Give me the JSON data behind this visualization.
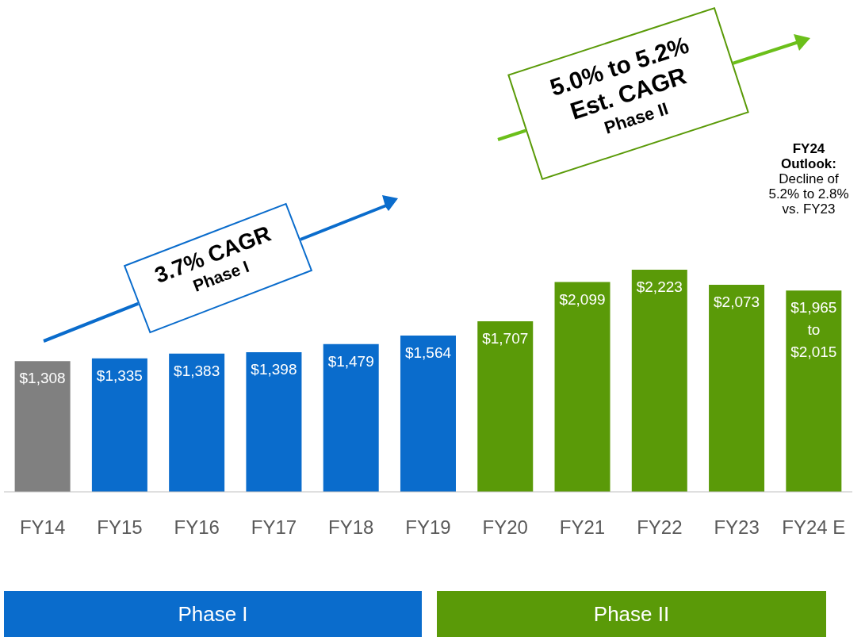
{
  "chart_data": {
    "type": "bar",
    "categories": [
      "FY14",
      "FY15",
      "FY16",
      "FY17",
      "FY18",
      "FY19",
      "FY20",
      "FY21",
      "FY22",
      "FY23",
      "FY24 E"
    ],
    "values": [
      1308,
      1335,
      1383,
      1398,
      1479,
      1564,
      1707,
      2099,
      2223,
      2073,
      2015
    ],
    "value_labels": [
      "$1,308",
      "$1,335",
      "$1,383",
      "$1,398",
      "$1,479",
      "$1,564",
      "$1,707",
      "$2,099",
      "$2,223",
      "$2,073",
      "$1,965\nto\n$2,015"
    ],
    "colors": [
      "#808080",
      "#0a6ccc",
      "#0a6ccc",
      "#0a6ccc",
      "#0a6ccc",
      "#0a6ccc",
      "#5a9a08",
      "#5a9a08",
      "#5a9a08",
      "#5a9a08",
      "#5a9a08"
    ],
    "grid": false,
    "legend": false,
    "annotations": [
      "3.7% CAGR\nPhase I",
      "5.0% to 5.2%\nEst. CAGR\nPhase II",
      "FY24\nOutlook:\nDecline of\n5.2% to 2.8%\nvs. FY23",
      "Phase I",
      "Phase II"
    ]
  }
}
